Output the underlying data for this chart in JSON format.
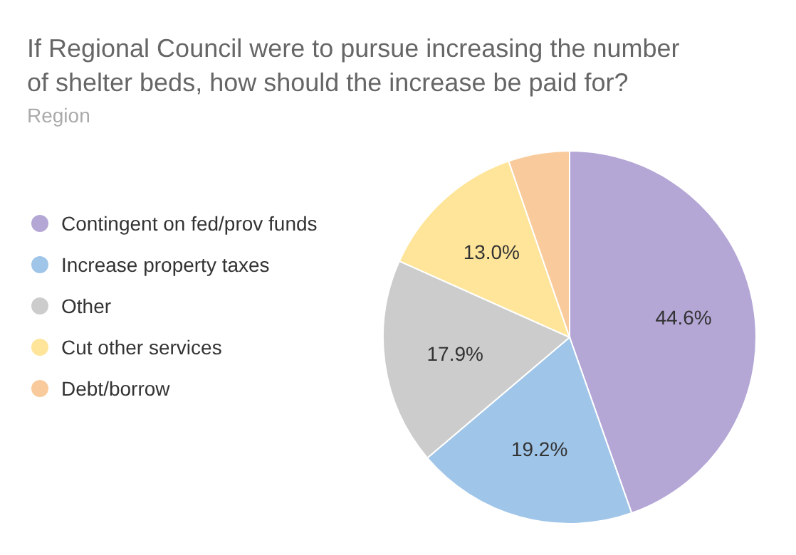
{
  "chart_data": {
    "type": "pie",
    "title": "If Regional Council were to pursue increasing the number of shelter beds, how should the increase be paid for?",
    "subtitle": "Region",
    "categories": [
      "Contingent on fed/prov funds",
      "Increase property taxes",
      "Other",
      "Cut other services",
      "Debt/borrow"
    ],
    "values": [
      44.6,
      19.2,
      17.9,
      13.0,
      5.3
    ],
    "colors": [
      "#b4a7d6",
      "#9fc5e8",
      "#cccccc",
      "#ffe599",
      "#f9cb9c"
    ],
    "value_labels": [
      "44.6%",
      "19.2%",
      "17.9%",
      "13.0%",
      null
    ],
    "legend": "left"
  }
}
